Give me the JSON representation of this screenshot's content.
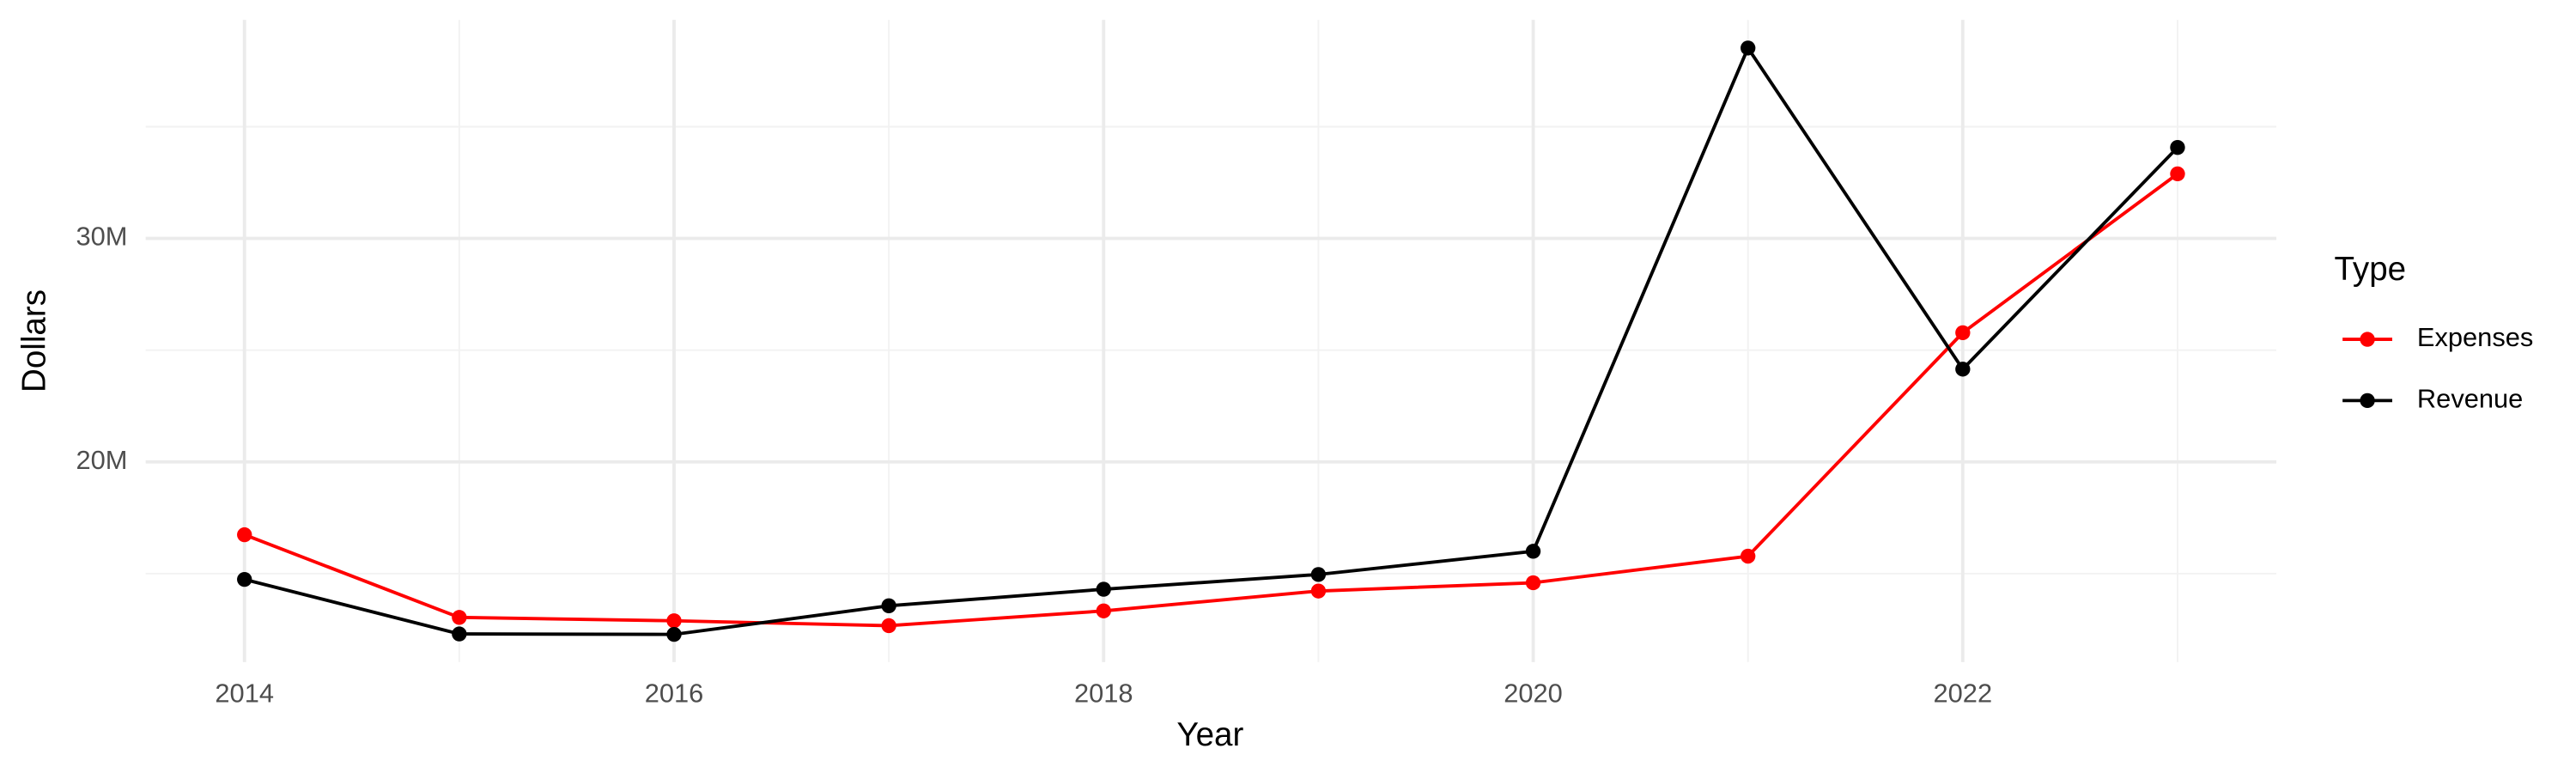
{
  "chart_data": {
    "type": "line",
    "x_label": "Year",
    "y_label": "Dollars",
    "legend_title": "Type",
    "legend_position": "right",
    "grid": true,
    "x": [
      2014,
      2015,
      2016,
      2017,
      2018,
      2019,
      2020,
      2021,
      2022,
      2023
    ],
    "series": [
      {
        "name": "Expenses",
        "color": "#ff0000",
        "values": [
          16740000,
          13040000,
          12890000,
          12670000,
          13330000,
          14220000,
          14590000,
          15780000,
          25780000,
          32890000
        ]
      },
      {
        "name": "Revenue",
        "color": "#000000",
        "values": [
          14740000,
          12300000,
          12280000,
          13560000,
          14300000,
          14960000,
          16000000,
          38520000,
          24150000,
          34070000
        ]
      }
    ],
    "xlim": [
      2013.54,
      2023.46
    ],
    "xticks": [
      2014,
      2016,
      2018,
      2020,
      2022
    ],
    "ylim": [
      11040000,
      39780000
    ],
    "yticks": [
      {
        "value": 20000000,
        "label": "20M"
      },
      {
        "value": 30000000,
        "label": "30M"
      }
    ]
  }
}
